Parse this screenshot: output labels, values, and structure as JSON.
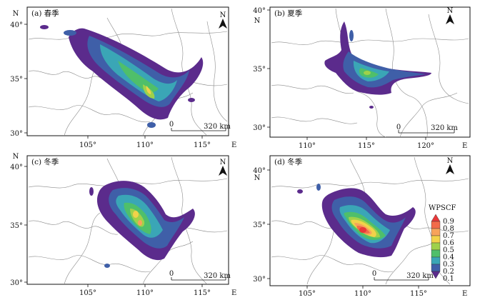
{
  "panels": [
    {
      "id": "a",
      "title": "(a) 春季",
      "x_ticks": [
        "105°",
        "110°",
        "115°"
      ],
      "x_end_label": "E",
      "y_ticks": [
        "40°",
        "35°",
        "30°"
      ],
      "y_top_label": "N",
      "scale_zero": "0",
      "scale_label": "320 km",
      "north": "N"
    },
    {
      "id": "b",
      "title": "(b) 夏季",
      "x_ticks": [
        "110°",
        "115°",
        "120°"
      ],
      "x_end_label": "E",
      "y_ticks": [
        "40°",
        "35°",
        "30°"
      ],
      "y_top_label": "N",
      "scale_zero": "0",
      "scale_label": "320 km",
      "north": "N"
    },
    {
      "id": "c",
      "title": "(c) 冬季",
      "x_ticks": [
        "105°",
        "110°",
        "115°"
      ],
      "x_end_label": "E",
      "y_ticks": [
        "40°",
        "35°",
        "30°"
      ],
      "y_top_label": "N",
      "scale_zero": "0",
      "scale_label": "320 km",
      "north": "N"
    },
    {
      "id": "d",
      "title": "(d) 冬季",
      "x_ticks": [
        "105°",
        "110°",
        "115°"
      ],
      "x_end_label": "E",
      "y_ticks": [
        "40°",
        "35°",
        "30°"
      ],
      "y_top_label": "N",
      "scale_zero": "0",
      "scale_label": "320 km",
      "north": "N"
    }
  ],
  "legend": {
    "title": "WPSCF",
    "levels": [
      "0.9",
      "0.8",
      "0.7",
      "0.6",
      "0.5",
      "0.4",
      "0.3",
      "0.2",
      "0.1"
    ],
    "colors": [
      "#e8383a",
      "#f26a4a",
      "#f7a35a",
      "#f2d24a",
      "#9fd14a",
      "#4fbf6a",
      "#3aa6b6",
      "#3f5fa8",
      "#5b2b8c"
    ]
  },
  "colors": {
    "level_low": "#5b2b8c",
    "level_02": "#3f5fa8",
    "level_03": "#3aa6b6",
    "level_04": "#4fbf6a",
    "level_05": "#9fd14a",
    "level_06": "#f2d24a",
    "level_07": "#f7a35a",
    "level_08": "#f26a4a",
    "level_09": "#e8383a"
  }
}
